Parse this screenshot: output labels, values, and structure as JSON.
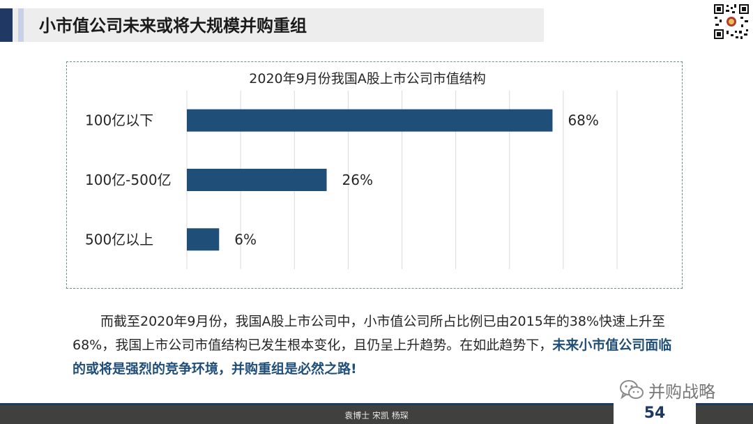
{
  "header": {
    "title": "小市值公司未来或将大规模并购重组"
  },
  "chart_data": {
    "type": "bar",
    "orientation": "horizontal",
    "title": "2020年9月份我国A股上市公司市值结构",
    "categories": [
      "100亿以下",
      "100亿-500亿",
      "500亿以上"
    ],
    "values": [
      68,
      26,
      6
    ],
    "data_labels": [
      "68%",
      "26%",
      "6%"
    ],
    "xlim": [
      0,
      80
    ],
    "grid": "vertical",
    "legend": "none",
    "bar_color": "#1f4e79"
  },
  "body": {
    "text_plain": "而截至2020年9月份，我国A股上市公司中，小市值公司所占比例已由2015年的38%快速上升至68%，我国上市公司市值结构已发生根本变化，且仍呈上升趋势。在如此趋势下，",
    "text_emphasis": "未来小市值公司面临的或将是强烈的竞争环境，并购重组是必然之路!"
  },
  "wechat": {
    "label": "并购战略",
    "icon": "wechat-icon"
  },
  "footer": {
    "authors": "袁博士 宋凯 杨琛",
    "page_number": "54"
  },
  "colors": {
    "accent_dark": "#1f3864",
    "bar": "#1f4e79",
    "emphasis": "#1f4e79"
  }
}
